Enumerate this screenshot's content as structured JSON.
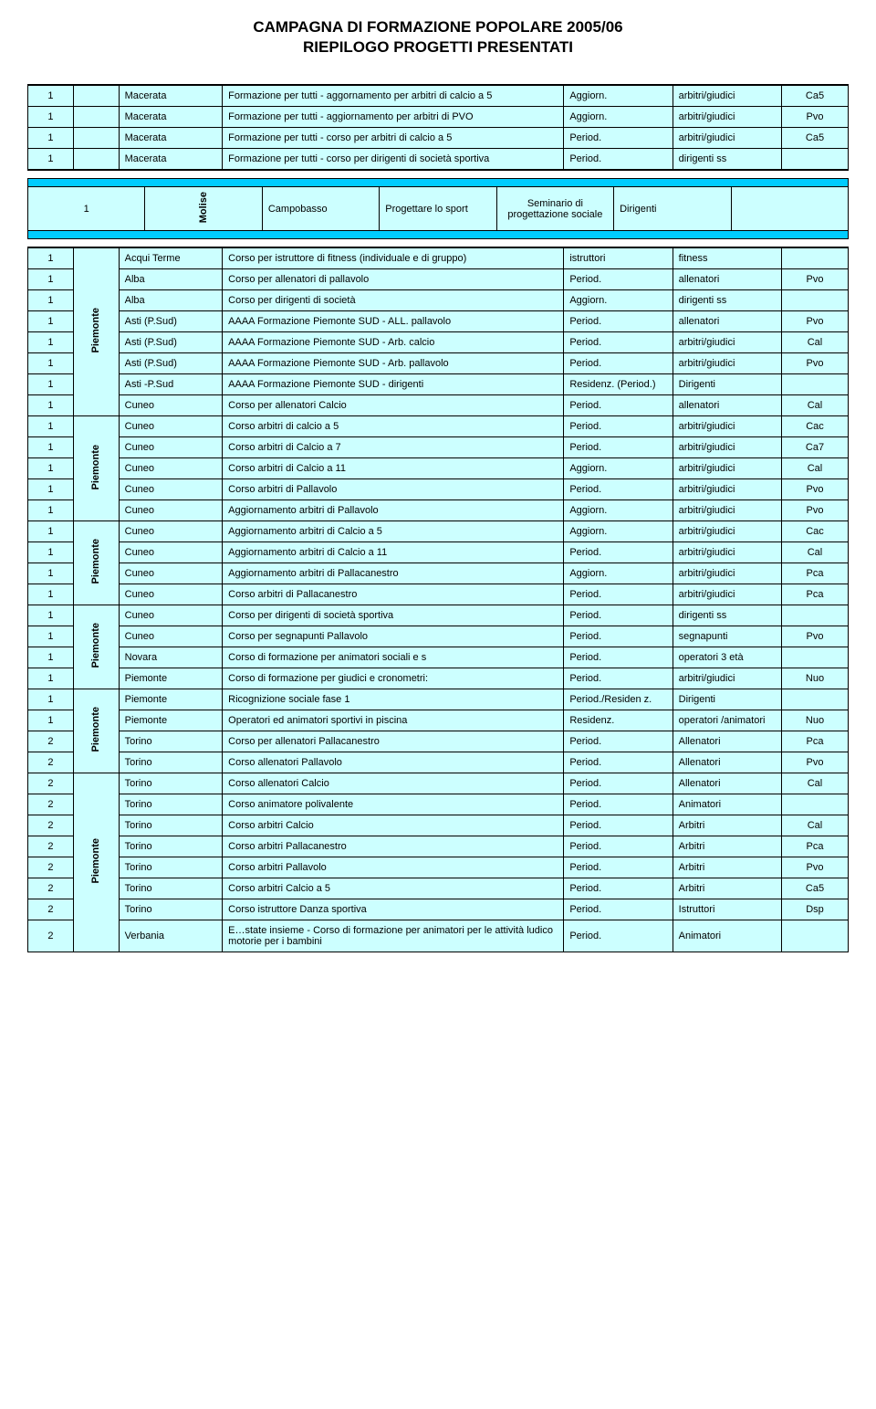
{
  "header": {
    "title": "CAMPAGNA DI FORMAZIONE POPOLARE 2005/06",
    "subtitle": "RIEPILOGO PROGETTI PRESENTATI"
  },
  "colors": {
    "row_bg": "#ccffff",
    "sep_bg": "#00ccff",
    "border": "#000000",
    "page_bg": "#ffffff"
  },
  "block1": {
    "rows": [
      {
        "n": "1",
        "prov": "Macerata",
        "desc": "Formazione per tutti - aggornamento per arbitri di calcio a 5",
        "t1": "Aggiorn.",
        "t2": "arbitri/giudici",
        "t3": "Ca5"
      },
      {
        "n": "1",
        "prov": "Macerata",
        "desc": "Formazione per tutti - aggiornamento per arbitri di PVO",
        "t1": "Aggiorn.",
        "t2": "arbitri/giudici",
        "t3": "Pvo"
      },
      {
        "n": "1",
        "prov": "Macerata",
        "desc": "Formazione per tutti - corso per arbitri di calcio a 5",
        "t1": "Period.",
        "t2": "arbitri/giudici",
        "t3": "Ca5"
      },
      {
        "n": "1",
        "prov": "Macerata",
        "desc": "Formazione per tutti - corso per dirigenti di società sportiva",
        "t1": "Period.",
        "t2": "dirigenti ss",
        "t3": ""
      }
    ]
  },
  "block2": {
    "region": "Molise",
    "rows": [
      {
        "n": "1",
        "prov": "Campobasso",
        "desc": "Progettare lo sport",
        "t1": "Seminario di progettazione sociale",
        "t2": "Dirigenti",
        "t3": ""
      }
    ]
  },
  "block3": {
    "regions": [
      "Piemonte",
      "Piemonte",
      "Piemonte",
      "Piemonte",
      "Piemonte",
      "Piemonte"
    ],
    "rows": [
      {
        "n": "1",
        "prov": "Acqui Terme",
        "desc": "Corso per istruttore di fitness (individuale e di gruppo)",
        "t1": "istruttori",
        "t2": "fitness",
        "t3": ""
      },
      {
        "n": "1",
        "prov": "Alba",
        "desc": "Corso per allenatori di pallavolo",
        "t1": "Period.",
        "t2": "allenatori",
        "t3": "Pvo"
      },
      {
        "n": "1",
        "prov": "Alba",
        "desc": "Corso per dirigenti di società",
        "t1": "Aggiorn.",
        "t2": "dirigenti ss",
        "t3": ""
      },
      {
        "n": "1",
        "prov": "Asti (P.Sud)",
        "desc": "AAAA  Formazione Piemonte SUD  - ALL. pallavolo",
        "t1": "Period.",
        "t2": "allenatori",
        "t3": "Pvo"
      },
      {
        "n": "1",
        "prov": "Asti (P.Sud)",
        "desc": "AAAA  Formazione Piemonte SUD - Arb. calcio",
        "t1": "Period.",
        "t2": "arbitri/giudici",
        "t3": "Cal"
      },
      {
        "n": "1",
        "prov": "Asti (P.Sud)",
        "desc": "AAAA  Formazione Piemonte SUD - Arb. pallavolo",
        "t1": "Period.",
        "t2": "arbitri/giudici",
        "t3": "Pvo"
      },
      {
        "n": "1",
        "prov": "Asti -P.Sud",
        "desc": "AAAA  Formazione Piemonte SUD - dirigenti",
        "t1": "Residenz. (Period.)",
        "t2": "Dirigenti",
        "t3": ""
      },
      {
        "n": "1",
        "prov": "Cuneo",
        "desc": "Corso per allenatori Calcio",
        "t1": "Period.",
        "t2": "allenatori",
        "t3": "Cal"
      },
      {
        "n": "1",
        "prov": "Cuneo",
        "desc": "Corso arbitri di calcio a 5",
        "t1": "Period.",
        "t2": "arbitri/giudici",
        "t3": "Cac"
      },
      {
        "n": "1",
        "prov": "Cuneo",
        "desc": "Corso arbitri di Calcio a 7",
        "t1": "Period.",
        "t2": "arbitri/giudici",
        "t3": "Ca7"
      },
      {
        "n": "1",
        "prov": "Cuneo",
        "desc": "Corso arbitri di Calcio a 11",
        "t1": "Aggiorn.",
        "t2": "arbitri/giudici",
        "t3": "Cal"
      },
      {
        "n": "1",
        "prov": "Cuneo",
        "desc": "Corso arbitri di Pallavolo",
        "t1": "Period.",
        "t2": "arbitri/giudici",
        "t3": "Pvo"
      },
      {
        "n": "1",
        "prov": "Cuneo",
        "desc": "Aggiornamento arbitri di Pallavolo",
        "t1": "Aggiorn.",
        "t2": "arbitri/giudici",
        "t3": "Pvo"
      },
      {
        "n": "1",
        "prov": "Cuneo",
        "desc": "Aggiornamento arbitri di Calcio a 5",
        "t1": "Aggiorn.",
        "t2": "arbitri/giudici",
        "t3": "Cac"
      },
      {
        "n": "1",
        "prov": "Cuneo",
        "desc": "Aggiornamento arbitri di Calcio a 11",
        "t1": "Period.",
        "t2": "arbitri/giudici",
        "t3": "Cal"
      },
      {
        "n": "1",
        "prov": "Cuneo",
        "desc": "Aggiornamento arbitri di Pallacanestro",
        "t1": "Aggiorn.",
        "t2": "arbitri/giudici",
        "t3": "Pca"
      },
      {
        "n": "1",
        "prov": "Cuneo",
        "desc": "Corso arbitri di Pallacanestro",
        "t1": "Period.",
        "t2": "arbitri/giudici",
        "t3": "Pca"
      },
      {
        "n": "1",
        "prov": "Cuneo",
        "desc": "Corso per dirigenti di società sportiva",
        "t1": "Period.",
        "t2": "dirigenti ss",
        "t3": ""
      },
      {
        "n": "1",
        "prov": "Cuneo",
        "desc": "Corso per segnapunti Pallavolo",
        "t1": "Period.",
        "t2": "segnapunti",
        "t3": "Pvo"
      },
      {
        "n": "1",
        "prov": "Novara",
        "desc": "Corso di formazione per animatori sociali e s",
        "t1": "Period.",
        "t2": "operatori 3 età",
        "t3": ""
      },
      {
        "n": "1",
        "prov": "Piemonte",
        "desc": "Corso di formazione per giudici e cronometri:",
        "t1": "Period.",
        "t2": "arbitri/giudici",
        "t3": "Nuo"
      },
      {
        "n": "1",
        "prov": "Piemonte",
        "desc": "Ricognizione sociale fase 1",
        "t1": "Period./Residen z.",
        "t2": "Dirigenti",
        "t3": ""
      },
      {
        "n": "1",
        "prov": "Piemonte",
        "desc": "Operatori ed animatori sportivi in piscina",
        "t1": "Residenz.",
        "t2": "operatori /animatori",
        "t3": "Nuo"
      },
      {
        "n": "2",
        "prov": "Torino",
        "desc": "Corso per allenatori Pallacanestro",
        "t1": "Period.",
        "t2": "Allenatori",
        "t3": "Pca"
      },
      {
        "n": "2",
        "prov": "Torino",
        "desc": "Corso allenatori Pallavolo",
        "t1": "Period.",
        "t2": "Allenatori",
        "t3": "Pvo"
      },
      {
        "n": "2",
        "prov": "Torino",
        "desc": "Corso allenatori Calcio",
        "t1": "Period.",
        "t2": "Allenatori",
        "t3": "Cal"
      },
      {
        "n": "2",
        "prov": "Torino",
        "desc": "Corso animatore polivalente",
        "t1": "Period.",
        "t2": "Animatori",
        "t3": ""
      },
      {
        "n": "2",
        "prov": "Torino",
        "desc": "Corso arbitri Calcio",
        "t1": "Period.",
        "t2": "Arbitri",
        "t3": "Cal"
      },
      {
        "n": "2",
        "prov": "Torino",
        "desc": "Corso arbitri Pallacanestro",
        "t1": "Period.",
        "t2": "Arbitri",
        "t3": "Pca"
      },
      {
        "n": "2",
        "prov": "Torino",
        "desc": "Corso arbitri Pallavolo",
        "t1": "Period.",
        "t2": "Arbitri",
        "t3": "Pvo"
      },
      {
        "n": "2",
        "prov": "Torino",
        "desc": "Corso arbitri Calcio a 5",
        "t1": "Period.",
        "t2": "Arbitri",
        "t3": "Ca5"
      },
      {
        "n": "2",
        "prov": "Torino",
        "desc": "Corso istruttore Danza sportiva",
        "t1": "Period.",
        "t2": "Istruttori",
        "t3": "Dsp"
      },
      {
        "n": "2",
        "prov": "Verbania",
        "desc": "E…state insieme - Corso di formazione per animatori per le attività ludico motorie per i bambini",
        "t1": "Period.",
        "t2": "Animatori",
        "t3": ""
      }
    ]
  }
}
